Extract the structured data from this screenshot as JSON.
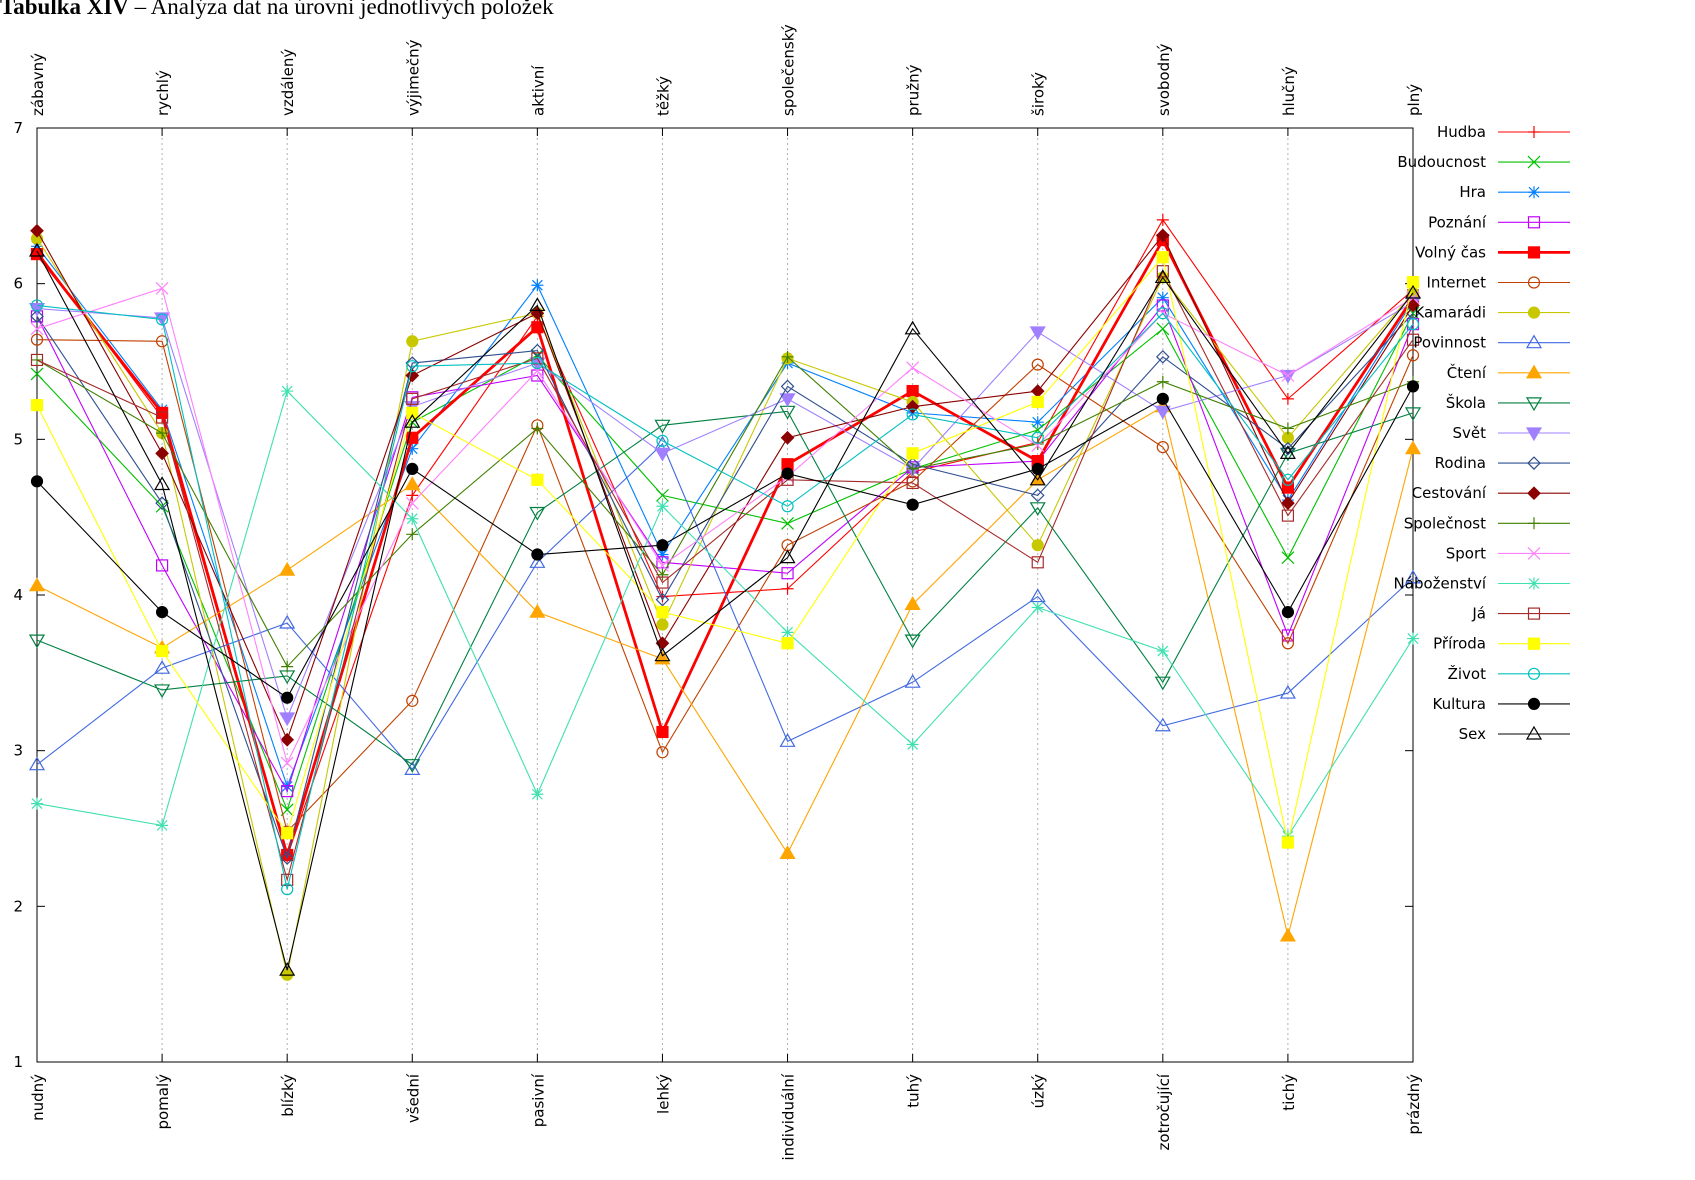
{
  "caption": {
    "label": "Tabulka XIV",
    "text": " – Analýza dat na úrovni jednotlivých položek"
  },
  "chart_data": {
    "type": "line",
    "top_labels": [
      "zábavný",
      "rychlý",
      "vzdálený",
      "výjimečný",
      "aktivní",
      "těžký",
      "společenský",
      "pružný",
      "široký",
      "svobodný",
      "hlučný",
      "plný"
    ],
    "bottom_labels": [
      "nudný",
      "pomalý",
      "blízký",
      "všední",
      "pasivní",
      "lehký",
      "individuální",
      "tuhý",
      "úzký",
      "zotročující",
      "tichý",
      "prázdný"
    ],
    "ylim": [
      1,
      7
    ],
    "yticks": [
      "1",
      "2",
      "3",
      "4",
      "5",
      "6",
      "7"
    ],
    "grid": "vertical dotted lines at each item",
    "legend_position": "right",
    "series": [
      {
        "name": "Hudba",
        "color": "#ff0000",
        "marker": "plus",
        "values": [
          6.21,
          5.14,
          2.32,
          4.64,
          5.79,
          3.99,
          4.04,
          4.79,
          4.98,
          6.41,
          5.26,
          5.96
        ]
      },
      {
        "name": "Budoucnost",
        "color": "#00c000",
        "marker": "cross",
        "values": [
          5.42,
          4.57,
          2.62,
          5.11,
          5.54,
          4.64,
          4.46,
          4.81,
          5.06,
          5.71,
          4.24,
          5.81
        ]
      },
      {
        "name": "Hra",
        "color": "#0080ff",
        "marker": "star",
        "values": [
          6.24,
          5.19,
          2.77,
          4.94,
          5.99,
          4.26,
          5.49,
          5.17,
          5.11,
          5.91,
          4.61,
          5.89
        ]
      },
      {
        "name": "Poznání",
        "color": "#c000ff",
        "marker": "square-open",
        "values": [
          5.79,
          4.19,
          2.74,
          5.27,
          5.41,
          4.21,
          4.14,
          4.82,
          4.86,
          5.86,
          3.74,
          5.74
        ]
      },
      {
        "name": "Volný čas",
        "color": "#ff0000",
        "marker": "square-filled",
        "bold": true,
        "values": [
          6.19,
          5.17,
          2.33,
          5.01,
          5.72,
          3.12,
          4.84,
          5.31,
          4.86,
          6.28,
          4.69,
          5.91
        ]
      },
      {
        "name": "Internet",
        "color": "#c04000",
        "marker": "circle-open",
        "values": [
          5.64,
          5.63,
          2.48,
          3.32,
          5.09,
          2.99,
          4.32,
          4.73,
          5.48,
          4.95,
          3.69,
          5.54
        ]
      },
      {
        "name": "Kamarádi",
        "color": "#c8c800",
        "marker": "circle-filled",
        "values": [
          6.29,
          5.04,
          1.56,
          5.63,
          5.81,
          3.81,
          5.52,
          5.24,
          4.32,
          6.04,
          5.01,
          5.94
        ]
      },
      {
        "name": "Povinnost",
        "color": "#4169e1",
        "marker": "triangle-open",
        "values": [
          2.91,
          3.53,
          3.82,
          2.88,
          4.21,
          4.97,
          3.06,
          3.44,
          3.99,
          3.16,
          3.37,
          4.11
        ]
      },
      {
        "name": "Čtení",
        "color": "#ffa500",
        "marker": "triangle-filled",
        "values": [
          4.06,
          3.66,
          4.16,
          4.71,
          3.89,
          3.59,
          2.34,
          3.94,
          4.74,
          5.21,
          1.81,
          4.94
        ]
      },
      {
        "name": "Škola",
        "color": "#008040",
        "marker": "triangle-down-open",
        "values": [
          3.71,
          3.39,
          3.48,
          2.91,
          4.53,
          5.09,
          5.18,
          3.71,
          4.56,
          3.44,
          4.91,
          5.17
        ]
      },
      {
        "name": "Svět",
        "color": "#a080ff",
        "marker": "triangle-down-filled",
        "values": [
          5.84,
          5.78,
          3.21,
          5.21,
          5.49,
          4.91,
          5.26,
          4.81,
          5.69,
          5.18,
          5.41,
          5.88
        ]
      },
      {
        "name": "Rodina",
        "color": "#2f4f8f",
        "marker": "diamond-open",
        "values": [
          5.79,
          4.59,
          2.31,
          5.49,
          5.57,
          3.97,
          5.34,
          4.84,
          4.64,
          5.53,
          4.94,
          5.81
        ]
      },
      {
        "name": "Cestování",
        "color": "#8b0000",
        "marker": "diamond-filled",
        "values": [
          6.34,
          4.91,
          3.07,
          5.41,
          5.81,
          3.69,
          5.01,
          5.21,
          5.31,
          6.31,
          4.59,
          5.86
        ]
      },
      {
        "name": "Společnost",
        "color": "#408000",
        "marker": "plus",
        "values": [
          5.51,
          5.04,
          3.54,
          4.39,
          5.07,
          4.13,
          5.53,
          4.81,
          4.97,
          5.37,
          5.07,
          5.37
        ]
      },
      {
        "name": "Sport",
        "color": "#ff80ff",
        "marker": "cross",
        "values": [
          5.71,
          5.97,
          2.92,
          4.59,
          5.44,
          4.19,
          4.76,
          5.46,
          4.96,
          5.81,
          5.41,
          5.91
        ]
      },
      {
        "name": "Náboženství",
        "color": "#40e0b0",
        "marker": "star",
        "values": [
          2.66,
          2.52,
          5.31,
          4.49,
          2.72,
          4.57,
          3.76,
          3.04,
          3.92,
          3.64,
          2.45,
          3.72
        ]
      },
      {
        "name": "Já",
        "color": "#a52a2a",
        "marker": "square-open",
        "values": [
          5.51,
          5.14,
          2.17,
          5.26,
          5.52,
          4.08,
          4.74,
          4.72,
          4.21,
          6.08,
          4.51,
          5.64
        ]
      },
      {
        "name": "Příroda",
        "color": "#ffff00",
        "marker": "square-filled",
        "values": [
          5.22,
          3.64,
          2.47,
          5.17,
          4.74,
          3.89,
          3.69,
          4.91,
          5.24,
          6.17,
          2.41,
          6.01
        ]
      },
      {
        "name": "Život",
        "color": "#00c0c0",
        "marker": "circle-open",
        "values": [
          5.86,
          5.77,
          2.11,
          5.47,
          5.49,
          4.99,
          4.57,
          5.16,
          5.01,
          5.81,
          4.74,
          5.74
        ]
      },
      {
        "name": "Kultura",
        "color": "#000000",
        "marker": "circle-filled",
        "values": [
          4.73,
          3.89,
          3.34,
          4.81,
          4.26,
          4.32,
          4.78,
          4.58,
          4.81,
          5.26,
          3.89,
          5.34
        ]
      },
      {
        "name": "Sex",
        "color": "#000000",
        "marker": "triangle-open",
        "values": [
          6.21,
          4.71,
          1.59,
          5.11,
          5.86,
          3.61,
          4.24,
          5.71,
          4.74,
          6.04,
          4.91,
          5.94
        ]
      }
    ]
  }
}
